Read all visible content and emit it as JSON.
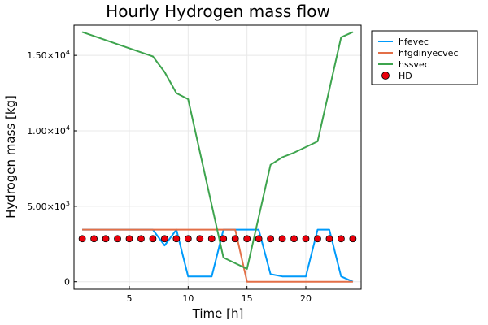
{
  "chart_data": {
    "type": "line",
    "title": "Hourly Hydrogen mass flow",
    "xlabel": "Time [h]",
    "ylabel": "Hydrogen mass [kg]",
    "xlim": [
      0.3,
      24.7
    ],
    "ylim": [
      -500,
      17000
    ],
    "xticks": [
      5,
      10,
      15,
      20
    ],
    "xtick_labels": [
      "5",
      "10",
      "15",
      "20"
    ],
    "yticks": [
      0,
      5000,
      10000,
      15000
    ],
    "ytick_labels": [
      {
        "mant": "0",
        "exp": ""
      },
      {
        "mant": "5.00×10",
        "exp": "3"
      },
      {
        "mant": "1.00×10",
        "exp": "4"
      },
      {
        "mant": "1.50×10",
        "exp": "4"
      }
    ],
    "grid": true,
    "legend_position": "outside-top-right",
    "x": [
      1,
      2,
      3,
      4,
      5,
      6,
      7,
      8,
      9,
      10,
      11,
      12,
      13,
      14,
      15,
      16,
      17,
      18,
      19,
      20,
      21,
      22,
      23,
      24
    ],
    "series": [
      {
        "name": "hfevec",
        "kind": "line",
        "color": "#009AFA",
        "values": [
          3450,
          3450,
          3450,
          3450,
          3450,
          3450,
          3450,
          2400,
          3450,
          350,
          350,
          350,
          3450,
          3450,
          3450,
          3450,
          500,
          350,
          350,
          350,
          3450,
          3450,
          350,
          0
        ]
      },
      {
        "name": "hfgdinyecvec",
        "kind": "line",
        "color": "#E36F47",
        "values": [
          3450,
          3450,
          3450,
          3450,
          3450,
          3450,
          3450,
          3450,
          3450,
          3450,
          3450,
          3450,
          3450,
          3450,
          0,
          0,
          0,
          0,
          0,
          0,
          0,
          0,
          0,
          0
        ]
      },
      {
        "name": "hssvec",
        "kind": "line",
        "color": "#3EA44E",
        "values": [
          16550,
          16280,
          16010,
          15740,
          15470,
          15200,
          14930,
          13900,
          12500,
          12100,
          null,
          null,
          1600,
          null,
          850,
          null,
          7750,
          8250,
          8550,
          null,
          9300,
          null,
          16200,
          16550
        ]
      },
      {
        "name": "HD",
        "kind": "scatter",
        "color": "#E8000B",
        "values": [
          2850,
          2850,
          2850,
          2850,
          2850,
          2850,
          2850,
          2850,
          2850,
          2850,
          2850,
          2850,
          2850,
          2850,
          2850,
          2850,
          2850,
          2850,
          2850,
          2850,
          2850,
          2850,
          2850,
          2850
        ]
      }
    ]
  }
}
